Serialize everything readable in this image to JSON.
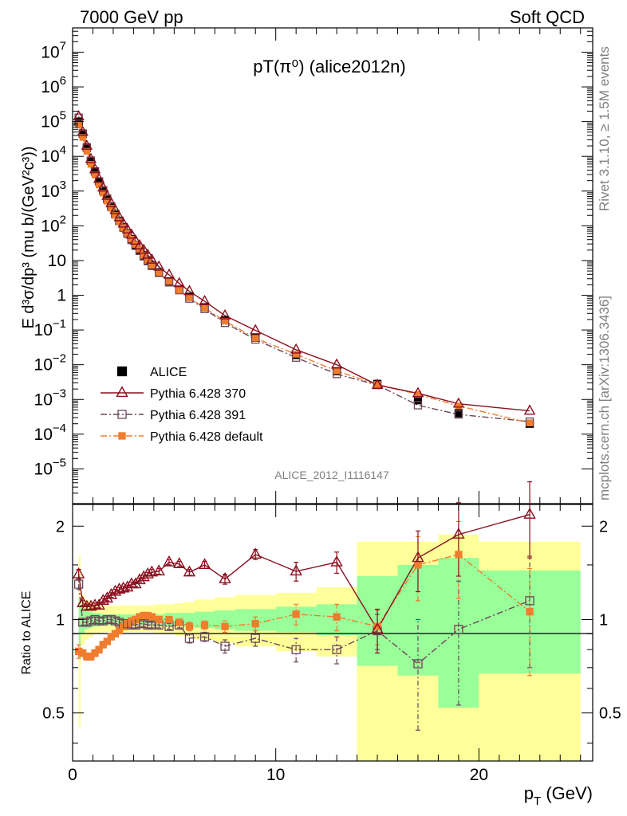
{
  "header": {
    "left": "7000 GeV pp",
    "right": "Soft QCD",
    "side_top": "Rivet 3.1.10, ≥ 1.5M events",
    "side_bottom": "mcplots.cern.ch [arXiv:1306.3436]",
    "watermark": "ALICE_2012_I1116147"
  },
  "colors": {
    "alice": "#000000",
    "p370": "#8b0f1f",
    "p391": "#6b4659",
    "pdef": "#f07c2d",
    "band_yellow": "#ffff99",
    "band_green": "#99ff99"
  },
  "chart_data": [
    {
      "type": "scatter",
      "title": "pT(π⁰) (alice2012n)",
      "ylabel": "E d³σ/dp³ (mu b/(GeV²c³))",
      "xlim": [
        0,
        25.6
      ],
      "ylim": [
        1e-06,
        50000000.0
      ],
      "yscale": "log",
      "yticks": [
        {
          "v": 10000000.0,
          "mant": "10",
          "exp": "7"
        },
        {
          "v": 1000000.0,
          "mant": "10",
          "exp": "6"
        },
        {
          "v": 100000.0,
          "mant": "10",
          "exp": "5"
        },
        {
          "v": 10000.0,
          "mant": "10",
          "exp": "4"
        },
        {
          "v": 1000.0,
          "mant": "10",
          "exp": "3"
        },
        {
          "v": 100.0,
          "mant": "10",
          "exp": "2"
        },
        {
          "v": 10,
          "mant": "10",
          "exp": ""
        },
        {
          "v": 1,
          "mant": "1",
          "exp": ""
        },
        {
          "v": 0.1,
          "mant": "10",
          "exp": "−1"
        },
        {
          "v": 0.01,
          "mant": "10",
          "exp": "−2"
        },
        {
          "v": 0.001,
          "mant": "10",
          "exp": "−3"
        },
        {
          "v": 0.0001,
          "mant": "10",
          "exp": "−4"
        },
        {
          "v": 1e-05,
          "mant": "10",
          "exp": "−5"
        }
      ],
      "legend": [
        "ALICE",
        "Pythia 6.428 370",
        "Pythia 6.428 391",
        "Pythia 6.428 default"
      ],
      "x": [
        0.3,
        0.5,
        0.7,
        0.9,
        1.1,
        1.3,
        1.5,
        1.7,
        1.9,
        2.1,
        2.3,
        2.5,
        2.7,
        2.9,
        3.1,
        3.3,
        3.5,
        3.7,
        3.9,
        4.25,
        4.75,
        5.25,
        5.75,
        6.5,
        7.5,
        9.0,
        11.0,
        13.0,
        15.0,
        17.0,
        19.0,
        22.5
      ],
      "alice": [
        100000,
        45000,
        18000,
        7500,
        3700,
        1900,
        1050,
        600,
        360,
        220,
        140,
        92,
        61,
        41,
        28,
        20,
        14,
        10,
        7.3,
        4.6,
        2.5,
        1.45,
        0.9,
        0.45,
        0.19,
        0.06,
        0.019,
        0.0065,
        0.0028,
        0.00095,
        0.0004,
        0.0002
      ],
      "p370": [
        140000,
        50000,
        20000,
        8300,
        4200,
        2200,
        1250,
        720,
        440,
        280,
        175,
        115,
        78,
        55,
        37,
        27,
        20,
        14.5,
        10.5,
        6.6,
        3.85,
        2.2,
        1.3,
        0.67,
        0.26,
        0.097,
        0.027,
        0.01,
        0.0026,
        0.0015,
        0.00075,
        0.00047
      ],
      "p391": [
        130000,
        44000,
        17500,
        7400,
        3650,
        1900,
        1030,
        590,
        355,
        215,
        136,
        88,
        59,
        39,
        26.5,
        19,
        13.2,
        9.6,
        7,
        4.4,
        2.35,
        1.4,
        0.8,
        0.4,
        0.16,
        0.053,
        0.016,
        0.0054,
        0.0026,
        0.00068,
        0.00037,
        0.00023
      ],
      "pdef": [
        80000,
        35000,
        14000,
        5900,
        2900,
        1500,
        870,
        510,
        320,
        200,
        130,
        88,
        60,
        41,
        29,
        21,
        14,
        10,
        7.3,
        4.5,
        2.5,
        1.4,
        0.85,
        0.43,
        0.18,
        0.058,
        0.02,
        0.0066,
        0.0027,
        0.0014,
        0.00065,
        0.00021
      ]
    },
    {
      "type": "scatter",
      "ylabel": "Ratio to ALICE",
      "xlabel": "p_T (GeV)",
      "xlim": [
        0,
        25.6
      ],
      "ylim": [
        0.35,
        2.35
      ],
      "yscale": "log",
      "yticks": [
        {
          "v": 0.5,
          "label": "0.5"
        },
        {
          "v": 1,
          "label": "1"
        },
        {
          "v": 2,
          "label": "2"
        }
      ],
      "xticks": [
        {
          "v": 0,
          "label": "0"
        },
        {
          "v": 10,
          "label": "10"
        },
        {
          "v": 20,
          "label": "20"
        }
      ],
      "x": [
        0.3,
        0.5,
        0.7,
        0.9,
        1.1,
        1.3,
        1.5,
        1.7,
        1.9,
        2.1,
        2.3,
        2.5,
        2.7,
        2.9,
        3.1,
        3.3,
        3.5,
        3.7,
        3.9,
        4.25,
        4.75,
        5.25,
        5.75,
        6.5,
        7.5,
        9.0,
        11.0,
        13.0,
        15.0,
        17.0,
        19.0,
        22.5
      ],
      "bin_edges": [
        0.3,
        0.4,
        0.6,
        0.8,
        1.0,
        1.2,
        1.4,
        1.6,
        1.8,
        2.0,
        2.2,
        2.4,
        2.6,
        2.8,
        3.0,
        3.2,
        3.4,
        3.6,
        3.8,
        4.0,
        4.5,
        5.0,
        5.5,
        6.0,
        7.0,
        8.0,
        10.0,
        12.0,
        14.0,
        16.0,
        18.0,
        20.0,
        25.0
      ],
      "band_yellow": [
        [
          0.45,
          1.6
        ],
        [
          0.83,
          1.2
        ],
        [
          0.86,
          1.16
        ],
        [
          0.88,
          1.14
        ],
        [
          0.9,
          1.12
        ],
        [
          0.9,
          1.12
        ],
        [
          0.91,
          1.11
        ],
        [
          0.91,
          1.11
        ],
        [
          0.91,
          1.11
        ],
        [
          0.91,
          1.11
        ],
        [
          0.91,
          1.11
        ],
        [
          0.91,
          1.11
        ],
        [
          0.91,
          1.11
        ],
        [
          0.91,
          1.11
        ],
        [
          0.91,
          1.11
        ],
        [
          0.91,
          1.11
        ],
        [
          0.91,
          1.11
        ],
        [
          0.91,
          1.11
        ],
        [
          0.91,
          1.11
        ],
        [
          0.9,
          1.12
        ],
        [
          0.9,
          1.12
        ],
        [
          0.89,
          1.13
        ],
        [
          0.88,
          1.14
        ],
        [
          0.86,
          1.16
        ],
        [
          0.84,
          1.18
        ],
        [
          0.82,
          1.2
        ],
        [
          0.79,
          1.22
        ],
        [
          0.76,
          1.27
        ],
        [
          0.35,
          1.78
        ],
        [
          0.35,
          1.78
        ],
        [
          0.35,
          1.88
        ],
        [
          0.35,
          1.78
        ]
      ],
      "band_green": [
        [
          0.75,
          1.18
        ],
        [
          0.9,
          1.1
        ],
        [
          0.93,
          1.07
        ],
        [
          0.94,
          1.06
        ],
        [
          0.95,
          1.05
        ],
        [
          0.95,
          1.05
        ],
        [
          0.96,
          1.04
        ],
        [
          0.96,
          1.04
        ],
        [
          0.96,
          1.04
        ],
        [
          0.96,
          1.04
        ],
        [
          0.96,
          1.04
        ],
        [
          0.96,
          1.04
        ],
        [
          0.96,
          1.04
        ],
        [
          0.96,
          1.04
        ],
        [
          0.96,
          1.04
        ],
        [
          0.96,
          1.04
        ],
        [
          0.96,
          1.04
        ],
        [
          0.96,
          1.04
        ],
        [
          0.96,
          1.04
        ],
        [
          0.96,
          1.04
        ],
        [
          0.95,
          1.05
        ],
        [
          0.95,
          1.05
        ],
        [
          0.95,
          1.05
        ],
        [
          0.94,
          1.06
        ],
        [
          0.93,
          1.07
        ],
        [
          0.92,
          1.08
        ],
        [
          0.91,
          1.1
        ],
        [
          0.89,
          1.12
        ],
        [
          0.71,
          1.38
        ],
        [
          0.66,
          1.5
        ],
        [
          0.52,
          1.58
        ],
        [
          0.67,
          1.44
        ]
      ],
      "p370": [
        1.4,
        1.13,
        1.1,
        1.1,
        1.11,
        1.11,
        1.15,
        1.17,
        1.2,
        1.23,
        1.25,
        1.26,
        1.27,
        1.3,
        1.3,
        1.34,
        1.37,
        1.4,
        1.42,
        1.43,
        1.53,
        1.51,
        1.42,
        1.5,
        1.35,
        1.62,
        1.43,
        1.53,
        0.93,
        1.58,
        1.88,
        2.18
      ],
      "p391": [
        1.3,
        0.98,
        0.98,
        0.99,
        1.0,
        0.99,
        0.99,
        1.0,
        1.0,
        0.99,
        0.98,
        0.97,
        0.97,
        0.96,
        0.96,
        0.97,
        0.97,
        0.96,
        0.96,
        0.96,
        0.95,
        0.96,
        0.87,
        0.88,
        0.82,
        0.87,
        0.8,
        0.8,
        0.92,
        0.72,
        0.93,
        1.15
      ],
      "pdef": [
        0.79,
        0.78,
        0.76,
        0.76,
        0.78,
        0.8,
        0.83,
        0.85,
        0.88,
        0.9,
        0.92,
        0.95,
        0.97,
        0.99,
        1.0,
        1.02,
        1.03,
        1.03,
        1.02,
        1.0,
        1.0,
        0.98,
        0.95,
        0.96,
        0.95,
        0.97,
        1.04,
        1.02,
        0.95,
        1.5,
        1.62,
        1.06
      ],
      "err370": [
        0.05,
        0.02,
        0.02,
        0.02,
        0.02,
        0.02,
        0.02,
        0.02,
        0.02,
        0.02,
        0.02,
        0.02,
        0.02,
        0.02,
        0.02,
        0.02,
        0.02,
        0.02,
        0.03,
        0.03,
        0.03,
        0.03,
        0.03,
        0.04,
        0.05,
        0.06,
        0.1,
        0.12,
        0.15,
        0.35,
        0.5,
        0.6
      ],
      "err391": [
        0.05,
        0.02,
        0.02,
        0.02,
        0.02,
        0.02,
        0.02,
        0.02,
        0.02,
        0.02,
        0.02,
        0.02,
        0.02,
        0.02,
        0.02,
        0.02,
        0.02,
        0.02,
        0.02,
        0.02,
        0.02,
        0.02,
        0.03,
        0.03,
        0.04,
        0.05,
        0.07,
        0.08,
        0.12,
        0.28,
        0.4,
        0.45
      ],
      "errdef": [
        0.04,
        0.02,
        0.02,
        0.02,
        0.02,
        0.02,
        0.02,
        0.02,
        0.02,
        0.02,
        0.02,
        0.02,
        0.02,
        0.02,
        0.02,
        0.02,
        0.02,
        0.02,
        0.02,
        0.02,
        0.02,
        0.02,
        0.03,
        0.03,
        0.04,
        0.05,
        0.08,
        0.1,
        0.12,
        0.35,
        0.45,
        0.4
      ]
    }
  ]
}
